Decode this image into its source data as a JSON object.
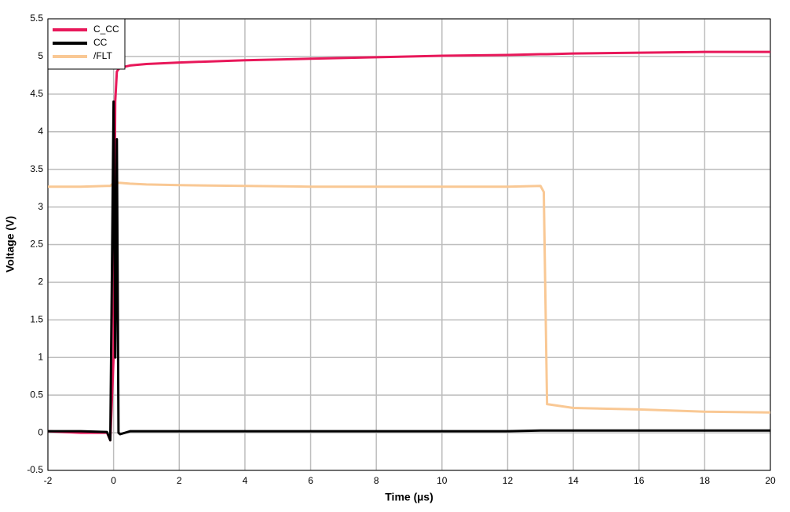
{
  "chart_data": {
    "type": "line",
    "x_label": "Time (µs)",
    "y_label": "Voltage (V)",
    "x": [
      -2,
      -1,
      -0.2,
      -0.1,
      0,
      0.05,
      0.1,
      0.15,
      0.2,
      0.5,
      1,
      2,
      4,
      6,
      8,
      10,
      12,
      13,
      13.1,
      13.2,
      14,
      16,
      18,
      20
    ],
    "series": [
      {
        "name": "C_CC",
        "color": "#e8185a",
        "values": [
          0.02,
          0.0,
          0.0,
          -0.1,
          1.0,
          4.4,
          4.8,
          4.83,
          4.85,
          4.88,
          4.9,
          4.92,
          4.95,
          4.97,
          4.99,
          5.01,
          5.02,
          5.03,
          5.03,
          5.03,
          5.04,
          5.05,
          5.06,
          5.06
        ]
      },
      {
        "name": "CC",
        "color": "#000000",
        "values": [
          0.02,
          0.02,
          0.01,
          -0.1,
          4.4,
          1.0,
          3.9,
          0.0,
          -0.02,
          0.02,
          0.02,
          0.02,
          0.02,
          0.02,
          0.02,
          0.02,
          0.02,
          0.03,
          0.03,
          0.03,
          0.03,
          0.03,
          0.03,
          0.03
        ]
      },
      {
        "name": "/FLT",
        "color": "#f9c894",
        "values": [
          3.27,
          3.27,
          3.28,
          3.28,
          3.32,
          3.33,
          3.33,
          3.32,
          3.32,
          3.31,
          3.3,
          3.29,
          3.28,
          3.27,
          3.27,
          3.27,
          3.27,
          3.28,
          3.2,
          0.38,
          0.33,
          0.31,
          0.28,
          0.27
        ]
      }
    ],
    "xlim": [
      -2,
      20
    ],
    "xticks": [
      -2,
      0,
      2,
      4,
      6,
      8,
      10,
      12,
      14,
      16,
      18,
      20
    ],
    "ylim": [
      -0.5,
      5.5
    ],
    "yticks": [
      -0.5,
      0,
      0.5,
      1,
      1.5,
      2,
      2.5,
      3,
      3.5,
      4,
      4.5,
      5,
      5.5
    ],
    "grid": true,
    "legend": "top-left"
  }
}
